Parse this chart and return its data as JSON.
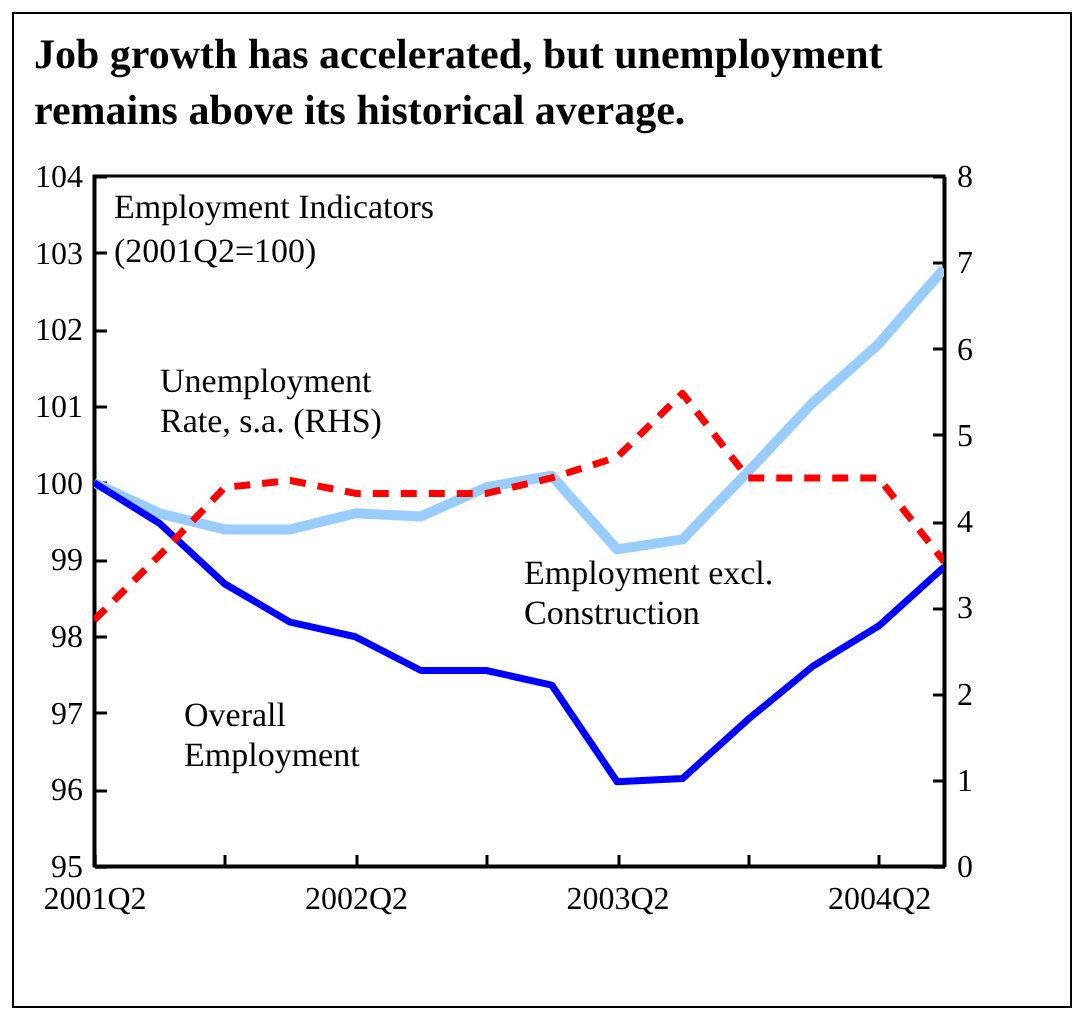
{
  "chart_data": {
    "type": "line",
    "title": "Job growth has accelerated, but unemployment\nremains above its historical average.",
    "subtitle": "Employment Indicators\n(2001Q2=100)",
    "categories": [
      "2001Q2",
      null,
      null,
      null,
      "2002Q2",
      null,
      null,
      null,
      "2003Q2",
      null,
      null,
      null,
      "2004Q2",
      null
    ],
    "series": [
      {
        "name": "Employment excl.\nConstruction",
        "color": "#99ccff",
        "values": [
          100,
          99.6,
          99.39,
          99.39,
          99.6,
          99.56,
          99.94,
          100.09,
          99.13,
          99.26,
          100.14,
          101.05,
          101.81,
          102.79
        ]
      },
      {
        "name": "Overall\nEmployment",
        "color": "#0000ff",
        "values": [
          100,
          99.47,
          98.68,
          98.18,
          97.99,
          97.55,
          97.55,
          97.36,
          96.1,
          96.14,
          96.91,
          97.61,
          98.13,
          98.9
        ]
      },
      {
        "name": "Unemployment\nRate, s.a. (RHS)",
        "color": "#ff0000",
        "axis": "y2",
        "line_style": "dashed",
        "values": [
          2.85,
          3.6,
          4.39,
          4.47,
          4.32,
          4.32,
          4.32,
          4.5,
          4.74,
          5.48,
          4.5,
          4.5,
          4.5,
          3.53
        ]
      }
    ],
    "ylim": [
      95,
      104
    ],
    "yticks": [
      95,
      96,
      97,
      98,
      99,
      100,
      101,
      102,
      103,
      104
    ],
    "y2lim": [
      0,
      8
    ],
    "y2ticks": [
      0,
      1,
      2,
      3,
      4,
      5,
      6,
      7,
      8
    ],
    "grid": false,
    "marker": "none"
  }
}
